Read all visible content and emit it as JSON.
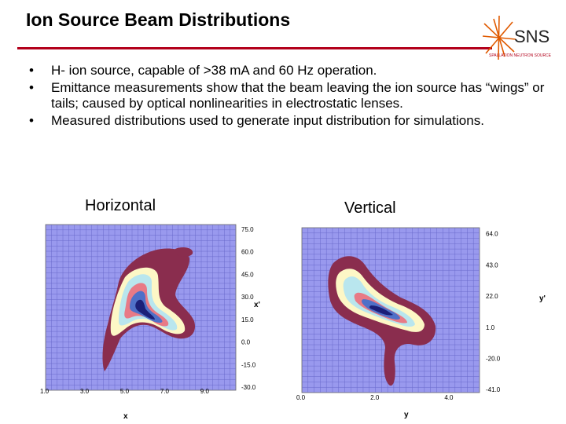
{
  "slide": {
    "title": "Ion Source Beam Distributions",
    "logo_text": "SNS",
    "logo_subtext": "SPALLATION NEUTRON SOURCE",
    "bullets": [
      "H- ion source, capable of >38 mA and 60 Hz operation.",
      "Emittance measurements show that the beam leaving the ion source has “wings” or tails; caused by optical nonlinearities in electrostatic lenses.",
      "Measured distributions used to generate input distribution for simulations."
    ],
    "bullet_char": "•"
  },
  "colors": {
    "rule": "#b3001b",
    "background_plot": "#9999ee",
    "contour_outer": "#8a2d4e",
    "contour_cream": "#fdf7c6",
    "contour_light_blue": "#b9e6ee",
    "contour_pink": "#e87a86",
    "contour_blue": "#4f70c8",
    "contour_navy": "#1b1f78"
  },
  "chart_data": [
    {
      "type": "heatmap",
      "caption": "Horizontal",
      "xlabel": "x",
      "ylabel": "x'",
      "x_ticks": [
        "1.0",
        "3.0",
        "5.0",
        "7.0",
        "9.0"
      ],
      "y_ticks": [
        "75.0",
        "60.0",
        "45.0",
        "30.0",
        "15.0",
        "0.0",
        "-15.0",
        "-30.0"
      ],
      "xlim": [
        1.0,
        10.5
      ],
      "ylim": [
        -32,
        78
      ],
      "grid": true
    },
    {
      "type": "heatmap",
      "caption": "Vertical",
      "xlabel": "y",
      "ylabel": "y'",
      "x_ticks": [
        "0.0",
        "2.0",
        "4.0"
      ],
      "y_ticks": [
        "64.0",
        "43.0",
        "22.0",
        "1.0",
        "-20.0",
        "-41.0"
      ],
      "xlim": [
        0.0,
        4.8
      ],
      "ylim": [
        -43,
        68
      ],
      "grid": true
    }
  ]
}
